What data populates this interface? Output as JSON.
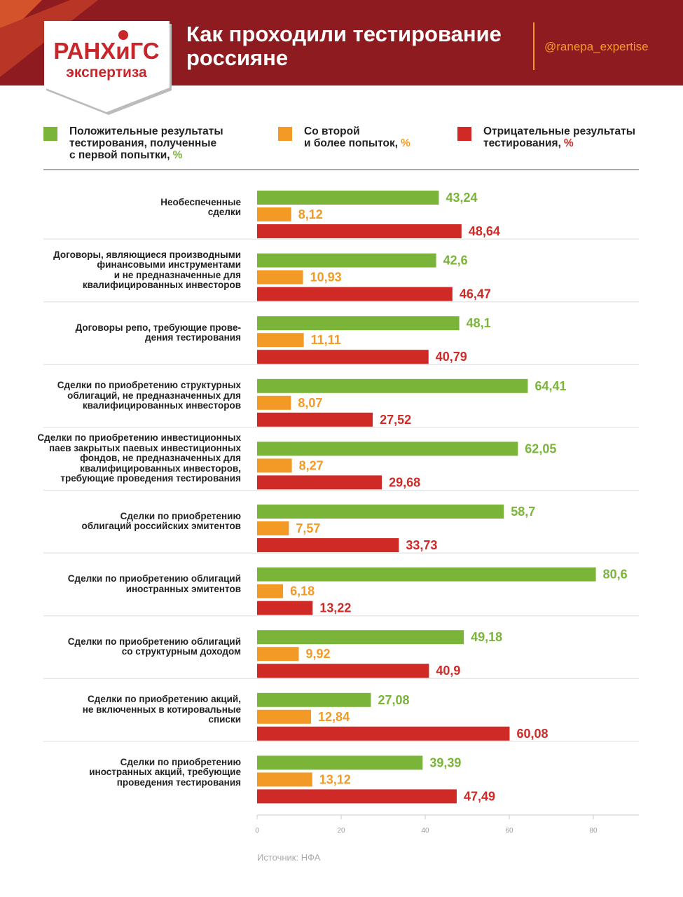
{
  "header": {
    "logo_main": "РАНХиГС",
    "logo_sub": "экспертиза",
    "title": "Как проходили тестирование\nроссияне",
    "handle": "@ranepa_expertise"
  },
  "chart_data": {
    "type": "bar",
    "orientation": "horizontal",
    "categories": [
      "Необеспеченные\nсделки",
      "Договоры, являющиеся производными\nфинансовыми инструментами\nи не предназначенные для\nквалифицированных инвесторов",
      "Договоры репо, требующие прове-\nдения тестирования",
      "Сделки по приобретению структурных\nоблигаций, не предназначенных для\nквалифицированных инвесторов",
      "Сделки по приобретению инвестиционных\nпаев закрытых паевых инвестиционных\nфондов, не предназначенных для\nквалифицированных инвесторов,\nтребующие проведения тестирования",
      "Сделки по приобретению\nоблигаций российских эмитентов",
      "Сделки по приобретению облигаций\nиностранных эмитентов",
      "Сделки по приобретению облигаций\nсо структурным доходом",
      "Сделки по приобретению акций,\nне включенных в котировальные\nсписки",
      "Сделки по приобретению\nиностранных акций, требующие\nпроведения тестирования"
    ],
    "series": [
      {
        "name": "Положительные результаты\nтестирования, полученные\nс первой попытки,",
        "legend_suffix": "%",
        "color": "#7ab53a",
        "values": [
          43.24,
          42.6,
          48.1,
          64.41,
          62.05,
          58.7,
          80.6,
          49.18,
          27.08,
          39.39
        ],
        "value_labels": [
          "43,24",
          "42,6",
          "48,1",
          "64,41",
          "62,05",
          "58,7",
          "80,6",
          "49,18",
          "27,08",
          "39,39"
        ]
      },
      {
        "name": "Со второй\nи более попыток,",
        "legend_suffix": "%",
        "color": "#f39a26",
        "values": [
          8.12,
          10.93,
          11.11,
          8.07,
          8.27,
          7.57,
          6.18,
          9.92,
          12.84,
          13.12
        ],
        "value_labels": [
          "8,12",
          "10,93",
          "11,11",
          "8,07",
          "8,27",
          "7,57",
          "6,18",
          "9,92",
          "12,84",
          "13,12"
        ]
      },
      {
        "name": "Отрицательные результаты\nтестирования,",
        "legend_suffix": "%",
        "color": "#cf2a25",
        "values": [
          48.64,
          46.47,
          40.79,
          27.52,
          29.68,
          33.73,
          13.22,
          40.9,
          60.08,
          47.49
        ],
        "value_labels": [
          "48,64",
          "46,47",
          "40,79",
          "27,52",
          "29,68",
          "33,73",
          "13,22",
          "40,9",
          "60,08",
          "47,49"
        ]
      }
    ],
    "xlim": [
      0,
      91
    ],
    "xticks": [
      0,
      20,
      40,
      60,
      80
    ]
  },
  "source": "Источник: НФА"
}
